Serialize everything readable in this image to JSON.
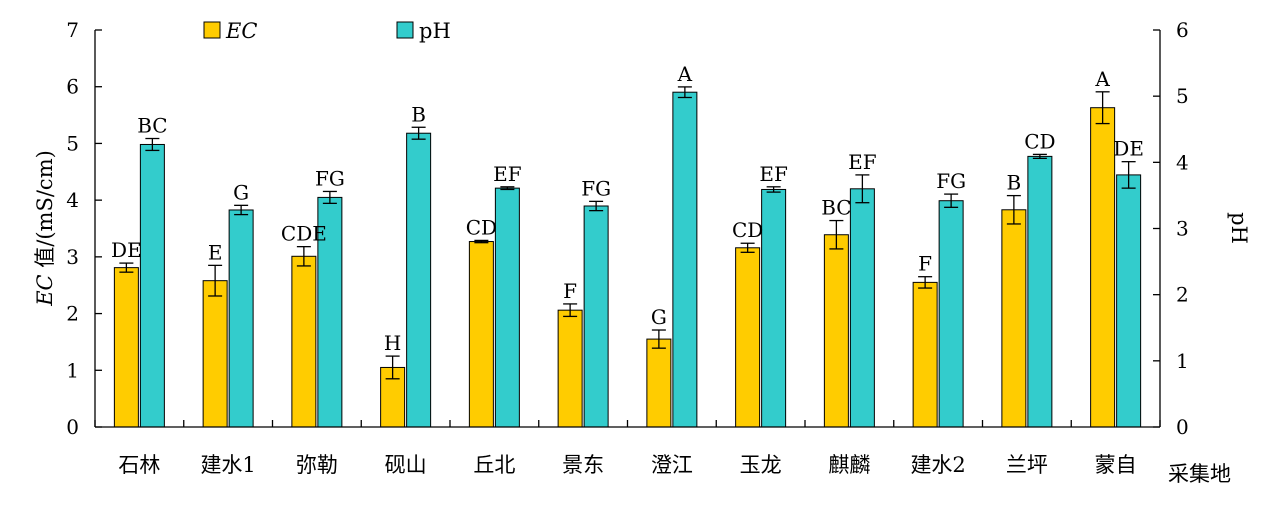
{
  "chart_data": {
    "type": "bar",
    "xlabel": "采集地",
    "ylabel_left": {
      "italic": "EC",
      "rest": " 值/(mS/cm)"
    },
    "ylabel_right": "pH",
    "ylim_left": [
      0,
      7
    ],
    "ylim_right": [
      0,
      6
    ],
    "yticks_left": [
      "0",
      "1",
      "2",
      "3",
      "4",
      "5",
      "6",
      "7"
    ],
    "yticks_right": [
      "0",
      "1",
      "2",
      "3",
      "4",
      "5",
      "6"
    ],
    "legend_position": "top-left",
    "categories": [
      "石林",
      "建水1",
      "弥勒",
      "砚山",
      "丘北",
      "景东",
      "澄江",
      "玉龙",
      "麒麟",
      "建水2",
      "兰坪",
      "蒙自"
    ],
    "series": [
      {
        "name": "EC",
        "axis": "left",
        "color": "#ffcc00",
        "values": [
          2.81,
          2.58,
          3.01,
          1.05,
          3.27,
          2.06,
          1.55,
          3.16,
          3.39,
          2.55,
          3.83,
          5.63
        ],
        "errors": [
          0.08,
          0.27,
          0.17,
          0.2,
          0.02,
          0.11,
          0.16,
          0.08,
          0.25,
          0.1,
          0.25,
          0.28
        ],
        "significance": [
          "DE",
          "E",
          "CDE",
          "H",
          "CD",
          "F",
          "G",
          "CD",
          "BC",
          "F",
          "B",
          "A"
        ]
      },
      {
        "name": "pH",
        "axis": "right",
        "color": "#33cccc",
        "values": [
          4.27,
          3.28,
          3.47,
          4.44,
          3.61,
          3.34,
          5.06,
          3.59,
          3.6,
          3.42,
          4.09,
          3.81
        ],
        "errors": [
          0.09,
          0.07,
          0.09,
          0.09,
          0.02,
          0.07,
          0.08,
          0.04,
          0.21,
          0.1,
          0.03,
          0.2
        ],
        "significance": [
          "BC",
          "G",
          "FG",
          "B",
          "EF",
          "FG",
          "A",
          "EF",
          "EF",
          "FG",
          "CD",
          "DE"
        ]
      }
    ]
  }
}
